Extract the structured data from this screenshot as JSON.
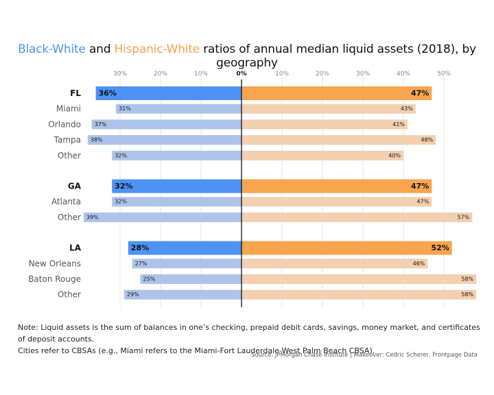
{
  "title": {
    "part1": "Black-White",
    "part2": " and ",
    "part3": "Hispanic-White",
    "part4": " ratios of annual median liquid assets (2018), by geography"
  },
  "colors": {
    "black_state": "#4e92f5",
    "black_city": "#adc3e9",
    "hispanic_state": "#f7a54e",
    "hispanic_city": "#f2d0b0",
    "grid": "#e4e4e4",
    "axis": "#111111"
  },
  "chart_data": {
    "type": "bar",
    "orientation": "horizontal-diverging",
    "x_ticks_left": [
      "30%",
      "20%",
      "10%"
    ],
    "x_ticks_right": [
      "0%",
      "10%",
      "20%",
      "30%",
      "40%",
      "50%"
    ],
    "xlim": [
      0,
      58
    ],
    "series": [
      {
        "name": "Black-White",
        "direction": "left"
      },
      {
        "name": "Hispanic-White",
        "direction": "right"
      }
    ],
    "groups": [
      {
        "label": "FL",
        "black": 36,
        "hispanic": 47,
        "black_label": "36%",
        "hispanic_label": "47%",
        "rows": [
          {
            "label": "Miami",
            "black": 31,
            "hispanic": 43,
            "black_label": "31%",
            "hispanic_label": "43%"
          },
          {
            "label": "Orlando",
            "black": 37,
            "hispanic": 41,
            "black_label": "37%",
            "hispanic_label": "41%"
          },
          {
            "label": "Tampa",
            "black": 38,
            "hispanic": 48,
            "black_label": "38%",
            "hispanic_label": "48%"
          },
          {
            "label": "Other",
            "black": 32,
            "hispanic": 40,
            "black_label": "32%",
            "hispanic_label": "40%"
          }
        ]
      },
      {
        "label": "GA",
        "black": 32,
        "hispanic": 47,
        "black_label": "32%",
        "hispanic_label": "47%",
        "rows": [
          {
            "label": "Atlanta",
            "black": 32,
            "hispanic": 47,
            "black_label": "32%",
            "hispanic_label": "47%"
          },
          {
            "label": "Other",
            "black": 39,
            "hispanic": 57,
            "black_label": "39%",
            "hispanic_label": "57%"
          }
        ]
      },
      {
        "label": "LA",
        "black": 28,
        "hispanic": 52,
        "black_label": "28%",
        "hispanic_label": "52%",
        "rows": [
          {
            "label": "New Orleans",
            "black": 27,
            "hispanic": 46,
            "black_label": "27%",
            "hispanic_label": "46%"
          },
          {
            "label": "Baton Rouge",
            "black": 25,
            "hispanic": 58,
            "black_label": "25%",
            "hispanic_label": "58%"
          },
          {
            "label": "Other",
            "black": 29,
            "hispanic": 58,
            "black_label": "29%",
            "hispanic_label": "58%"
          }
        ]
      }
    ],
    "grid": true
  },
  "note": {
    "line1": "Note: Liquid assets is the sum of balances in one’s checking, prepaid debit cards, savings, money market, and certificates of deposit accounts.",
    "line2": "Cities refer to CBSAs (e.g., Miami refers to the Miami-Fort Lauderdale-West Palm Beach CBSA)."
  },
  "source": "Source: JPMorgan Chase Institute | Makeover: Cedric Scherer, Frontpage Data"
}
